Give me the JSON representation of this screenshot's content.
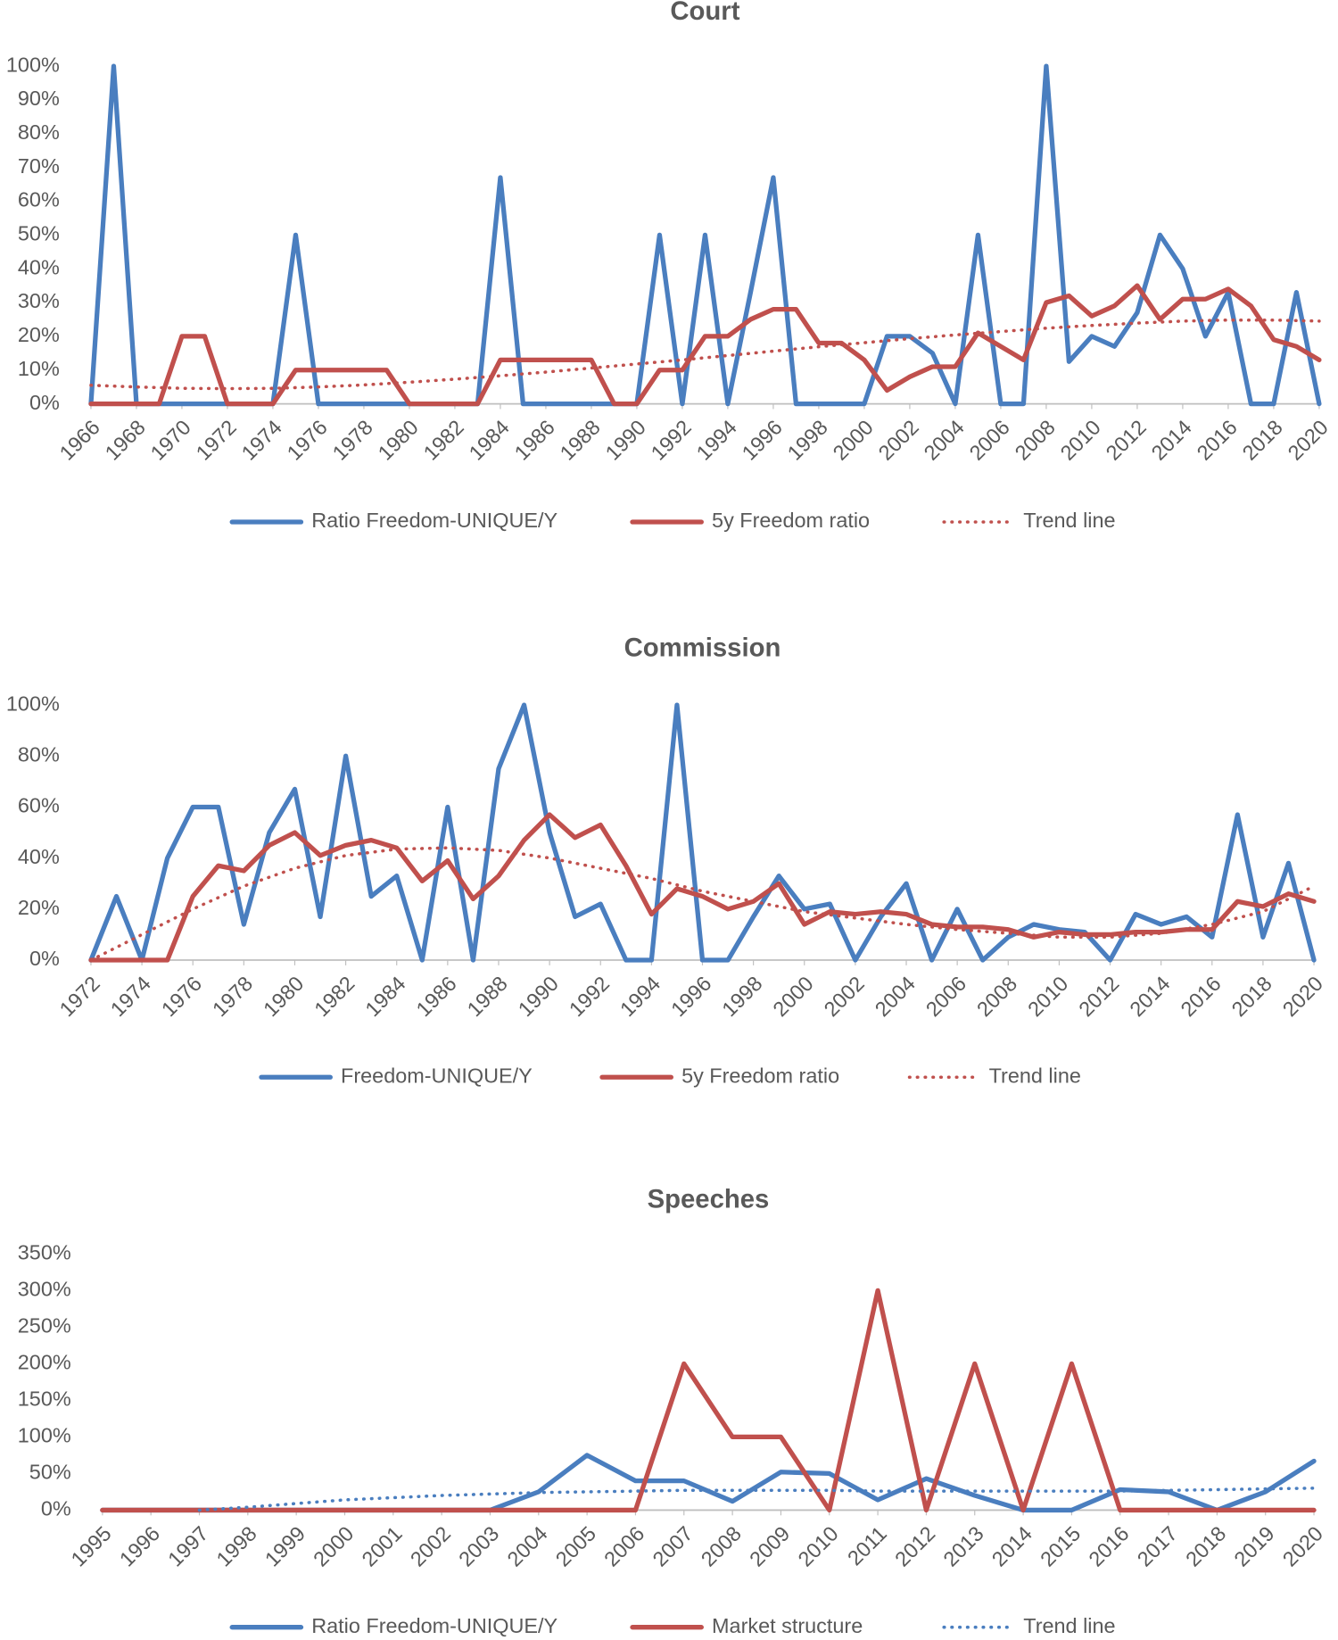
{
  "chart_data": [
    {
      "type": "line",
      "title": "Court",
      "x": [
        1966,
        1967,
        1968,
        1969,
        1970,
        1971,
        1972,
        1973,
        1974,
        1975,
        1976,
        1977,
        1978,
        1979,
        1980,
        1981,
        1982,
        1983,
        1984,
        1985,
        1986,
        1987,
        1988,
        1989,
        1990,
        1991,
        1992,
        1993,
        1994,
        1995,
        1996,
        1997,
        1998,
        1999,
        2000,
        2001,
        2002,
        2003,
        2004,
        2005,
        2006,
        2007,
        2008,
        2009,
        2010,
        2011,
        2012,
        2013,
        2014,
        2015,
        2016,
        2017,
        2018,
        2019,
        2020
      ],
      "xlim": [
        1966,
        2020
      ],
      "xticks": [
        1966,
        1968,
        1970,
        1972,
        1974,
        1976,
        1978,
        1980,
        1982,
        1984,
        1986,
        1988,
        1990,
        1992,
        1994,
        1996,
        1998,
        2000,
        2002,
        2004,
        2006,
        2008,
        2010,
        2012,
        2014,
        2016,
        2018,
        2020
      ],
      "ylim": [
        0,
        100
      ],
      "yticks": [
        {
          "value": 0,
          "label": "0%"
        },
        {
          "value": 10,
          "label": "10%"
        },
        {
          "value": 20,
          "label": "20%"
        },
        {
          "value": 30,
          "label": "30%"
        },
        {
          "value": 40,
          "label": "40%"
        },
        {
          "value": 50,
          "label": "50%"
        },
        {
          "value": 60,
          "label": "60%"
        },
        {
          "value": 70,
          "label": "70%"
        },
        {
          "value": 80,
          "label": "80%"
        },
        {
          "value": 90,
          "label": "90%"
        },
        {
          "value": 100,
          "label": "100%"
        }
      ],
      "legend": "bottom",
      "series": [
        {
          "name": "Ratio Freedom-UNIQUE/Y",
          "color": "#4a7ebf",
          "style": "solid",
          "values": [
            0,
            100,
            0,
            0,
            0,
            0,
            0,
            0,
            0,
            50,
            0,
            0,
            0,
            0,
            0,
            0,
            0,
            0,
            67,
            0,
            0,
            0,
            0,
            0,
            0,
            50,
            0,
            50,
            0,
            33,
            67,
            0,
            0,
            0,
            0,
            20,
            20,
            15,
            0,
            50,
            0,
            0,
            100,
            12.5,
            20,
            17,
            27,
            50,
            40,
            20,
            33,
            0,
            0,
            33,
            0
          ]
        },
        {
          "name": "5y Freedom ratio",
          "color": "#c0504d",
          "style": "solid",
          "values": [
            0,
            0,
            0,
            0,
            20,
            20,
            0,
            0,
            0,
            10,
            10,
            10,
            10,
            10,
            0,
            0,
            0,
            0,
            13,
            13,
            13,
            13,
            13,
            0,
            0,
            10,
            10,
            20,
            20,
            25,
            28,
            28,
            18,
            18,
            13,
            4,
            8,
            11,
            11,
            21,
            17,
            13,
            30,
            32,
            26,
            29,
            35,
            25,
            31,
            31,
            34,
            29,
            19,
            17,
            13
          ]
        },
        {
          "name": "Trend line",
          "color": "#c0504d",
          "style": "dotted",
          "x": [
            1966,
            1968,
            1970,
            1972,
            1974,
            1976,
            1978,
            1980,
            1982,
            1984,
            1986,
            1988,
            1990,
            1992,
            1994,
            1996,
            1998,
            2000,
            2002,
            2004,
            2006,
            2008,
            2010,
            2012,
            2014,
            2016,
            2018,
            2020
          ],
          "values": [
            5.5,
            5,
            4.6,
            4.5,
            4.6,
            5,
            5.6,
            6.4,
            7.3,
            8.3,
            9.4,
            10.6,
            11.8,
            13,
            14.3,
            15.6,
            16.9,
            18.1,
            19.3,
            20.4,
            21.4,
            22.4,
            23.2,
            23.9,
            24.5,
            24.8,
            24.8,
            24.5
          ]
        }
      ]
    },
    {
      "type": "line",
      "title": "Commission",
      "x": [
        1972,
        1973,
        1974,
        1975,
        1976,
        1977,
        1978,
        1979,
        1980,
        1981,
        1982,
        1983,
        1984,
        1985,
        1986,
        1987,
        1988,
        1989,
        1990,
        1991,
        1992,
        1993,
        1994,
        1995,
        1996,
        1997,
        1998,
        1999,
        2000,
        2001,
        2002,
        2003,
        2004,
        2005,
        2006,
        2007,
        2008,
        2009,
        2010,
        2011,
        2012,
        2013,
        2014,
        2015,
        2016,
        2017,
        2018,
        2019,
        2020
      ],
      "xlim": [
        1972,
        2020
      ],
      "xticks": [
        1972,
        1974,
        1976,
        1978,
        1980,
        1982,
        1984,
        1986,
        1988,
        1990,
        1992,
        1994,
        1996,
        1998,
        2000,
        2002,
        2004,
        2006,
        2008,
        2010,
        2012,
        2014,
        2016,
        2018,
        2020
      ],
      "ylim": [
        0,
        100
      ],
      "yticks": [
        {
          "value": 0,
          "label": "0%"
        },
        {
          "value": 20,
          "label": "20%"
        },
        {
          "value": 40,
          "label": "40%"
        },
        {
          "value": 60,
          "label": "60%"
        },
        {
          "value": 80,
          "label": "80%"
        },
        {
          "value": 100,
          "label": "100%"
        }
      ],
      "legend": "bottom",
      "series": [
        {
          "name": "Freedom-UNIQUE/Y",
          "color": "#4a7ebf",
          "style": "solid",
          "values": [
            0,
            25,
            0,
            40,
            60,
            60,
            14,
            50,
            67,
            17,
            80,
            25,
            33,
            0,
            60,
            0,
            75,
            100,
            50,
            17,
            22,
            0,
            0,
            100,
            0,
            0,
            17,
            33,
            20,
            22,
            0,
            17,
            30,
            0,
            20,
            0,
            9,
            14,
            12,
            11,
            0,
            18,
            14,
            17,
            9,
            57,
            9,
            38,
            0
          ]
        },
        {
          "name": "5y Freedom ratio",
          "color": "#c0504d",
          "style": "solid",
          "values": [
            0,
            0,
            0,
            0,
            25,
            37,
            35,
            45,
            50,
            41,
            45,
            47,
            44,
            31,
            39,
            24,
            33,
            47,
            57,
            48,
            53,
            37,
            18,
            28,
            25,
            20,
            23,
            30,
            14,
            19,
            18,
            19,
            18,
            14,
            13,
            13,
            12,
            9,
            11,
            10,
            10,
            11,
            11,
            12,
            12,
            23,
            21,
            26,
            23
          ]
        },
        {
          "name": "Trend line",
          "color": "#c0504d",
          "style": "dotted",
          "x": [
            1972,
            1974,
            1976,
            1978,
            1980,
            1982,
            1984,
            1986,
            1988,
            1990,
            1992,
            1994,
            1996,
            1998,
            2000,
            2002,
            2004,
            2006,
            2008,
            2010,
            2012,
            2014,
            2016,
            2018,
            2020
          ],
          "values": [
            0,
            10,
            20,
            29,
            36,
            41,
            43.5,
            44,
            43,
            40,
            36,
            32,
            27,
            23,
            19,
            16.5,
            14,
            12,
            10.5,
            9,
            9,
            10.5,
            14,
            19,
            29
          ]
        }
      ]
    },
    {
      "type": "line",
      "title": "Speeches",
      "x": [
        1995,
        1996,
        1997,
        1998,
        1999,
        2000,
        2001,
        2002,
        2003,
        2004,
        2005,
        2006,
        2007,
        2008,
        2009,
        2010,
        2011,
        2012,
        2013,
        2014,
        2015,
        2016,
        2017,
        2018,
        2019,
        2020
      ],
      "xlim": [
        1995,
        2020
      ],
      "xticks": [
        1995,
        1996,
        1997,
        1998,
        1999,
        2000,
        2001,
        2002,
        2003,
        2004,
        2005,
        2006,
        2007,
        2008,
        2009,
        2010,
        2011,
        2012,
        2013,
        2014,
        2015,
        2016,
        2017,
        2018,
        2019,
        2020
      ],
      "ylim": [
        0,
        350
      ],
      "yticks": [
        {
          "value": 0,
          "label": "0%"
        },
        {
          "value": 50,
          "label": "50%"
        },
        {
          "value": 100,
          "label": "100%"
        },
        {
          "value": 150,
          "label": "150%"
        },
        {
          "value": 200,
          "label": "200%"
        },
        {
          "value": 250,
          "label": "250%"
        },
        {
          "value": 300,
          "label": "300%"
        },
        {
          "value": 350,
          "label": "350%"
        }
      ],
      "legend": "bottom",
      "series": [
        {
          "name": "Ratio Freedom-UNIQUE/Y",
          "color": "#4a7ebf",
          "style": "solid",
          "values": [
            0,
            0,
            0,
            0,
            0,
            0,
            0,
            0,
            0,
            25,
            75,
            40,
            40,
            12,
            52,
            50,
            14,
            43,
            20,
            0,
            0,
            28,
            25,
            0,
            25,
            67
          ]
        },
        {
          "name": "Market structure",
          "color": "#c0504d",
          "style": "solid",
          "values": [
            0,
            0,
            0,
            0,
            0,
            0,
            0,
            0,
            0,
            0,
            0,
            0,
            200,
            100,
            100,
            0,
            300,
            0,
            200,
            0,
            200,
            0,
            0,
            0,
            0,
            0
          ]
        },
        {
          "name": "Trend line",
          "color": "#4a7ebf",
          "style": "dotted",
          "x": [
            1997,
            1998,
            1999,
            2000,
            2001,
            2002,
            2003,
            2004,
            2005,
            2006,
            2007,
            2008,
            2009,
            2010,
            2011,
            2012,
            2013,
            2014,
            2015,
            2016,
            2017,
            2018,
            2019,
            2020
          ],
          "values": [
            0,
            4,
            9,
            14,
            17,
            20,
            22,
            24,
            25,
            26,
            27,
            27,
            27,
            27,
            26,
            26,
            26,
            26,
            26,
            26,
            27,
            28,
            29,
            30
          ]
        }
      ]
    }
  ]
}
